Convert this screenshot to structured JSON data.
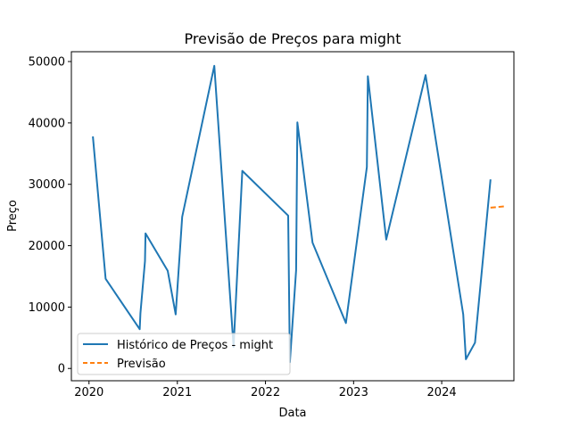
{
  "chart_data": {
    "type": "line",
    "title": "Previsão de Preços para might",
    "xlabel": "Data",
    "ylabel": "Preço",
    "xlim": [
      "2019-10-20",
      "2024-10-26"
    ],
    "ylim": [
      -2000,
      51600
    ],
    "x_ticks": [
      "2020",
      "2021",
      "2022",
      "2023",
      "2024"
    ],
    "y_ticks": [
      0,
      10000,
      20000,
      30000,
      40000,
      50000
    ],
    "grid": false,
    "legend": {
      "placement": "lower-left"
    },
    "series": [
      {
        "name": "Histórico de Preços - might",
        "color": "#1f77b4",
        "style": "solid",
        "points": [
          [
            "2020-01-17",
            37800
          ],
          [
            "2020-03-10",
            14600
          ],
          [
            "2020-07-29",
            6400
          ],
          [
            "2020-08-01",
            9000
          ],
          [
            "2020-08-20",
            17500
          ],
          [
            "2020-08-22",
            22000
          ],
          [
            "2020-11-22",
            15900
          ],
          [
            "2020-12-25",
            8800
          ],
          [
            "2021-01-21",
            24700
          ],
          [
            "2021-06-03",
            49300
          ],
          [
            "2021-08-22",
            3500
          ],
          [
            "2021-09-27",
            32200
          ],
          [
            "2022-04-05",
            24900
          ],
          [
            "2022-04-12",
            1000
          ],
          [
            "2022-05-08",
            16000
          ],
          [
            "2022-05-13",
            40100
          ],
          [
            "2022-07-15",
            20500
          ],
          [
            "2022-11-30",
            7400
          ],
          [
            "2023-02-25",
            32800
          ],
          [
            "2023-03-01",
            47600
          ],
          [
            "2023-05-16",
            21000
          ],
          [
            "2023-10-26",
            47800
          ],
          [
            "2024-03-30",
            8800
          ],
          [
            "2024-04-10",
            1500
          ],
          [
            "2024-05-18",
            4200
          ],
          [
            "2024-07-21",
            30800
          ]
        ]
      },
      {
        "name": "Previsão",
        "color": "#ff7f0e",
        "style": "dashed",
        "points": [
          [
            "2024-07-21",
            26200
          ],
          [
            "2024-08-18",
            26300
          ],
          [
            "2024-09-15",
            26400
          ]
        ]
      }
    ]
  }
}
